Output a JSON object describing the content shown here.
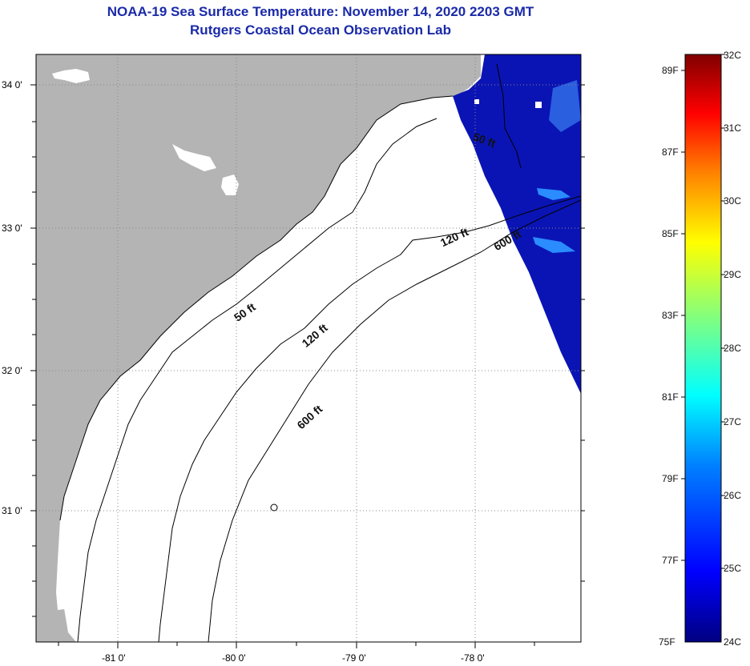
{
  "header": {
    "title": "NOAA-19 Sea Surface Temperature:  November 14, 2020 2203 GMT",
    "subtitle": "Rutgers Coastal Ocean Observation Lab"
  },
  "map": {
    "lat_labels": [
      "34 0'",
      "33 0'",
      "32 0'",
      "31 0'"
    ],
    "lon_labels": [
      "-81 0'",
      "-80 0'",
      "-79 0'",
      "-78 0'"
    ],
    "colors": {
      "land": "#b4b4b4",
      "ocean_no_data": "#ffffff",
      "sst_cold": "#0a14b4",
      "sst_warm_patch": "#2a8cff"
    },
    "contours": [
      {
        "label": "50 ft"
      },
      {
        "label": "120 ft"
      },
      {
        "label": "600 ft"
      },
      {
        "label": "120 ft"
      },
      {
        "label": "600 ft"
      },
      {
        "label": "50 ft"
      }
    ]
  },
  "colorbar": {
    "celsius_labels": [
      "32C",
      "31C",
      "30C",
      "29C",
      "28C",
      "27C",
      "26C",
      "25C",
      "24C"
    ],
    "fahrenheit_labels": [
      "89F",
      "87F",
      "85F",
      "83F",
      "81F",
      "79F",
      "77F",
      "75F"
    ],
    "stops": [
      "#000080",
      "#0000ff",
      "#0080ff",
      "#00ffff",
      "#80ff80",
      "#ffff00",
      "#ff8000",
      "#ff0000",
      "#800000"
    ]
  }
}
